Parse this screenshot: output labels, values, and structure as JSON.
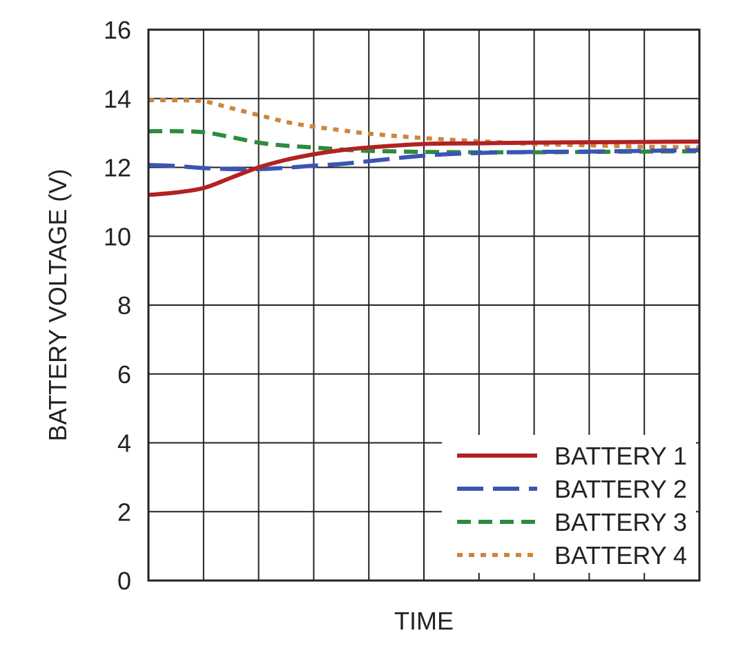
{
  "chart_data": {
    "type": "line",
    "title": "",
    "xlabel": "TIME",
    "ylabel": "BATTERY VOLTAGE (V)",
    "ylim": [
      0,
      16
    ],
    "y_ticks": [
      "0",
      "2",
      "4",
      "6",
      "8",
      "10",
      "12",
      "14",
      "16"
    ],
    "x_divisions": 10,
    "grid": true,
    "legend_position": "bottom-right",
    "x": [
      0,
      0.5,
      1,
      1.5,
      2,
      2.5,
      3,
      3.5,
      4,
      5,
      6,
      7,
      8,
      9,
      10
    ],
    "series": [
      {
        "name": "BATTERY 1",
        "color": "#b22222",
        "style": "solid",
        "values": [
          11.2,
          11.27,
          11.4,
          11.7,
          12.0,
          12.22,
          12.38,
          12.5,
          12.58,
          12.68,
          12.7,
          12.72,
          12.73,
          12.74,
          12.75
        ]
      },
      {
        "name": "BATTERY 2",
        "color": "#3a55b4",
        "style": "long-dash",
        "values": [
          12.07,
          12.04,
          11.98,
          11.95,
          11.95,
          11.99,
          12.05,
          12.1,
          12.18,
          12.34,
          12.42,
          12.45,
          12.46,
          12.48,
          12.5
        ]
      },
      {
        "name": "BATTERY 3",
        "color": "#2e8b3e",
        "style": "dash",
        "values": [
          13.05,
          13.05,
          13.02,
          12.88,
          12.72,
          12.63,
          12.58,
          12.52,
          12.48,
          12.45,
          12.44,
          12.44,
          12.45,
          12.46,
          12.47
        ]
      },
      {
        "name": "BATTERY 4",
        "color": "#cd853f",
        "style": "dot",
        "values": [
          13.95,
          13.95,
          13.92,
          13.72,
          13.52,
          13.32,
          13.18,
          13.08,
          12.98,
          12.85,
          12.76,
          12.68,
          12.64,
          12.6,
          12.58
        ]
      }
    ]
  }
}
